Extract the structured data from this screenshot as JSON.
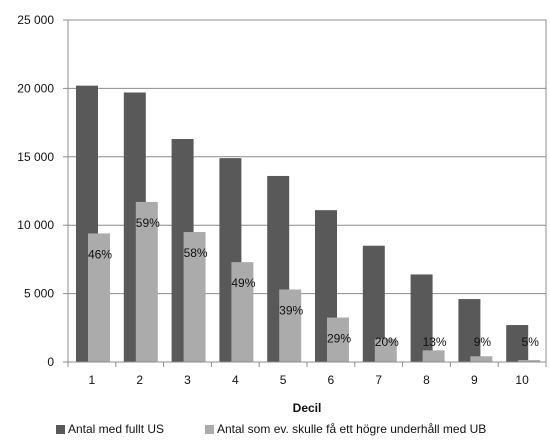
{
  "chart_data": {
    "type": "bar",
    "xlabel": "Decil",
    "ylabel": "",
    "ylim": [
      0,
      25000
    ],
    "yticks": [
      0,
      5000,
      10000,
      15000,
      20000,
      25000
    ],
    "ytick_labels": [
      "0",
      "5 000",
      "10 000",
      "15 000",
      "20 000",
      "25 000"
    ],
    "grid": true,
    "legend_position": "bottom",
    "categories": [
      "1",
      "2",
      "3",
      "4",
      "5",
      "6",
      "7",
      "8",
      "9",
      "10"
    ],
    "series": [
      {
        "name": "Antal med fullt US",
        "color": "#595959",
        "values": [
          20200,
          19700,
          16300,
          14900,
          13600,
          11100,
          8500,
          6400,
          4600,
          2700
        ]
      },
      {
        "name": "Antal som ev. skulle få ett högre underhåll med UB",
        "color": "#ababab",
        "values": [
          9400,
          11700,
          9500,
          7300,
          5300,
          3250,
          1700,
          850,
          420,
          140
        ],
        "data_labels": [
          "46%",
          "59%",
          "58%",
          "49%",
          "39%",
          "29%",
          "20%",
          "13%",
          "9%",
          "5%"
        ]
      }
    ]
  }
}
